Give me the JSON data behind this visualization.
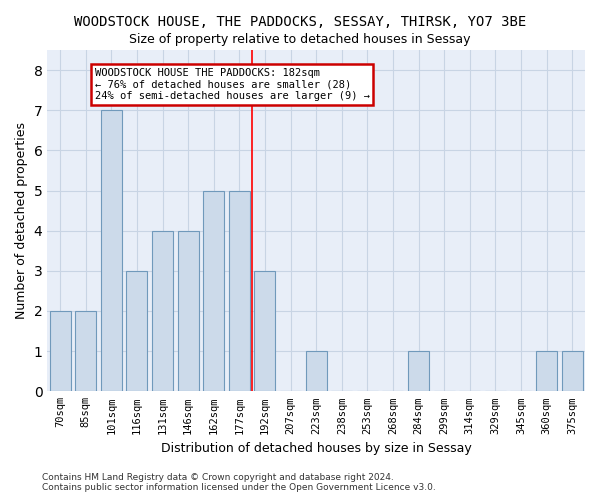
{
  "title": "WOODSTOCK HOUSE, THE PADDOCKS, SESSAY, THIRSK, YO7 3BE",
  "subtitle": "Size of property relative to detached houses in Sessay",
  "xlabel": "Distribution of detached houses by size in Sessay",
  "ylabel": "Number of detached properties",
  "categories": [
    "70sqm",
    "85sqm",
    "101sqm",
    "116sqm",
    "131sqm",
    "146sqm",
    "162sqm",
    "177sqm",
    "192sqm",
    "207sqm",
    "223sqm",
    "238sqm",
    "253sqm",
    "268sqm",
    "284sqm",
    "299sqm",
    "314sqm",
    "329sqm",
    "345sqm",
    "360sqm",
    "375sqm"
  ],
  "values": [
    2,
    2,
    7,
    3,
    4,
    4,
    5,
    5,
    3,
    0,
    1,
    0,
    0,
    0,
    1,
    0,
    0,
    0,
    0,
    1,
    1
  ],
  "bar_color": "#ccdaea",
  "bar_edge_color": "#7099bb",
  "grid_color": "#c8d4e4",
  "background_color": "#e8eef8",
  "property_line_index": 7,
  "annotation_text": "WOODSTOCK HOUSE THE PADDOCKS: 182sqm\n← 76% of detached houses are smaller (28)\n24% of semi-detached houses are larger (9) →",
  "annotation_box_color": "#ffffff",
  "annotation_box_edge_color": "#cc0000",
  "footer": "Contains HM Land Registry data © Crown copyright and database right 2024.\nContains public sector information licensed under the Open Government Licence v3.0.",
  "ylim": [
    0,
    8.5
  ],
  "yticks": [
    0,
    1,
    2,
    3,
    4,
    5,
    6,
    7,
    8
  ],
  "title_fontsize": 10,
  "subtitle_fontsize": 9
}
